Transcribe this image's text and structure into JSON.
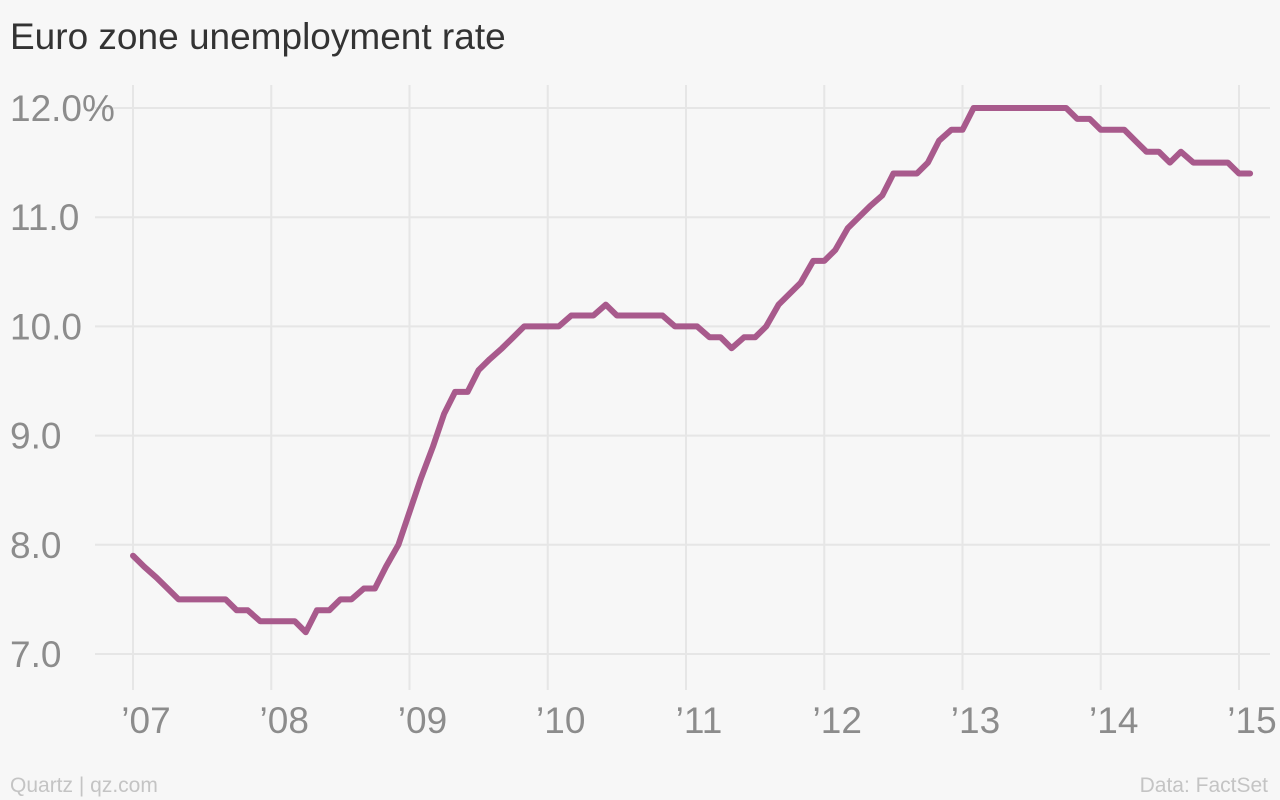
{
  "chart_data": {
    "type": "line",
    "title": "Euro zone unemployment rate",
    "xlabel": "",
    "ylabel": "",
    "x_range": [
      2007.0,
      2015.1
    ],
    "ylim": [
      7.0,
      12.0
    ],
    "y_ticks": [
      {
        "value": 12.0,
        "label": "12.0%"
      },
      {
        "value": 11.0,
        "label": "11.0"
      },
      {
        "value": 10.0,
        "label": "10.0"
      },
      {
        "value": 9.0,
        "label": "9.0"
      },
      {
        "value": 8.0,
        "label": "8.0"
      },
      {
        "value": 7.0,
        "label": "7.0"
      }
    ],
    "x_ticks": [
      {
        "value": 2007,
        "label": "’07"
      },
      {
        "value": 2008,
        "label": "’08"
      },
      {
        "value": 2009,
        "label": "’09"
      },
      {
        "value": 2010,
        "label": "’10"
      },
      {
        "value": 2011,
        "label": "’11"
      },
      {
        "value": 2012,
        "label": "’12"
      },
      {
        "value": 2013,
        "label": "’13"
      },
      {
        "value": 2014,
        "label": "’14"
      },
      {
        "value": 2015,
        "label": "’15"
      }
    ],
    "grid": true,
    "legend": "none",
    "series": [
      {
        "color": "#a85a8c",
        "x": [
          2007.0,
          2007.08,
          2007.17,
          2007.25,
          2007.33,
          2007.42,
          2007.5,
          2007.58,
          2007.67,
          2007.75,
          2007.83,
          2007.92,
          2008.0,
          2008.08,
          2008.17,
          2008.25,
          2008.33,
          2008.42,
          2008.5,
          2008.58,
          2008.67,
          2008.75,
          2008.83,
          2008.92,
          2009.0,
          2009.08,
          2009.17,
          2009.25,
          2009.33,
          2009.42,
          2009.5,
          2009.58,
          2009.67,
          2009.75,
          2009.83,
          2009.92,
          2010.0,
          2010.08,
          2010.17,
          2010.25,
          2010.33,
          2010.42,
          2010.5,
          2010.58,
          2010.67,
          2010.75,
          2010.83,
          2010.92,
          2011.0,
          2011.08,
          2011.17,
          2011.25,
          2011.33,
          2011.42,
          2011.5,
          2011.58,
          2011.67,
          2011.75,
          2011.83,
          2011.92,
          2012.0,
          2012.08,
          2012.17,
          2012.25,
          2012.33,
          2012.42,
          2012.5,
          2012.58,
          2012.67,
          2012.75,
          2012.83,
          2012.92,
          2013.0,
          2013.08,
          2013.17,
          2013.25,
          2013.33,
          2013.42,
          2013.5,
          2013.58,
          2013.67,
          2013.75,
          2013.83,
          2013.92,
          2014.0,
          2014.08,
          2014.17,
          2014.25,
          2014.33,
          2014.42,
          2014.5,
          2014.58,
          2014.67,
          2014.75,
          2014.83,
          2014.92,
          2015.0,
          2015.08
        ],
        "values": [
          7.9,
          7.8,
          7.7,
          7.6,
          7.5,
          7.5,
          7.5,
          7.5,
          7.5,
          7.4,
          7.4,
          7.3,
          7.3,
          7.3,
          7.3,
          7.2,
          7.4,
          7.4,
          7.5,
          7.5,
          7.6,
          7.6,
          7.8,
          8.0,
          8.3,
          8.6,
          8.9,
          9.2,
          9.4,
          9.4,
          9.6,
          9.7,
          9.8,
          9.9,
          10.0,
          10.0,
          10.0,
          10.0,
          10.1,
          10.1,
          10.1,
          10.2,
          10.1,
          10.1,
          10.1,
          10.1,
          10.1,
          10.0,
          10.0,
          10.0,
          9.9,
          9.9,
          9.8,
          9.9,
          9.9,
          10.0,
          10.2,
          10.3,
          10.4,
          10.6,
          10.6,
          10.7,
          10.9,
          11.0,
          11.1,
          11.2,
          11.4,
          11.4,
          11.4,
          11.5,
          11.7,
          11.8,
          11.8,
          12.0,
          12.0,
          12.0,
          12.0,
          12.0,
          12.0,
          12.0,
          12.0,
          12.0,
          11.9,
          11.9,
          11.8,
          11.8,
          11.8,
          11.7,
          11.6,
          11.6,
          11.5,
          11.6,
          11.5,
          11.5,
          11.5,
          11.5,
          11.4,
          11.4
        ]
      }
    ]
  },
  "footer": {
    "source_left": "Quartz | qz.com",
    "source_right": "Data: FactSet"
  }
}
